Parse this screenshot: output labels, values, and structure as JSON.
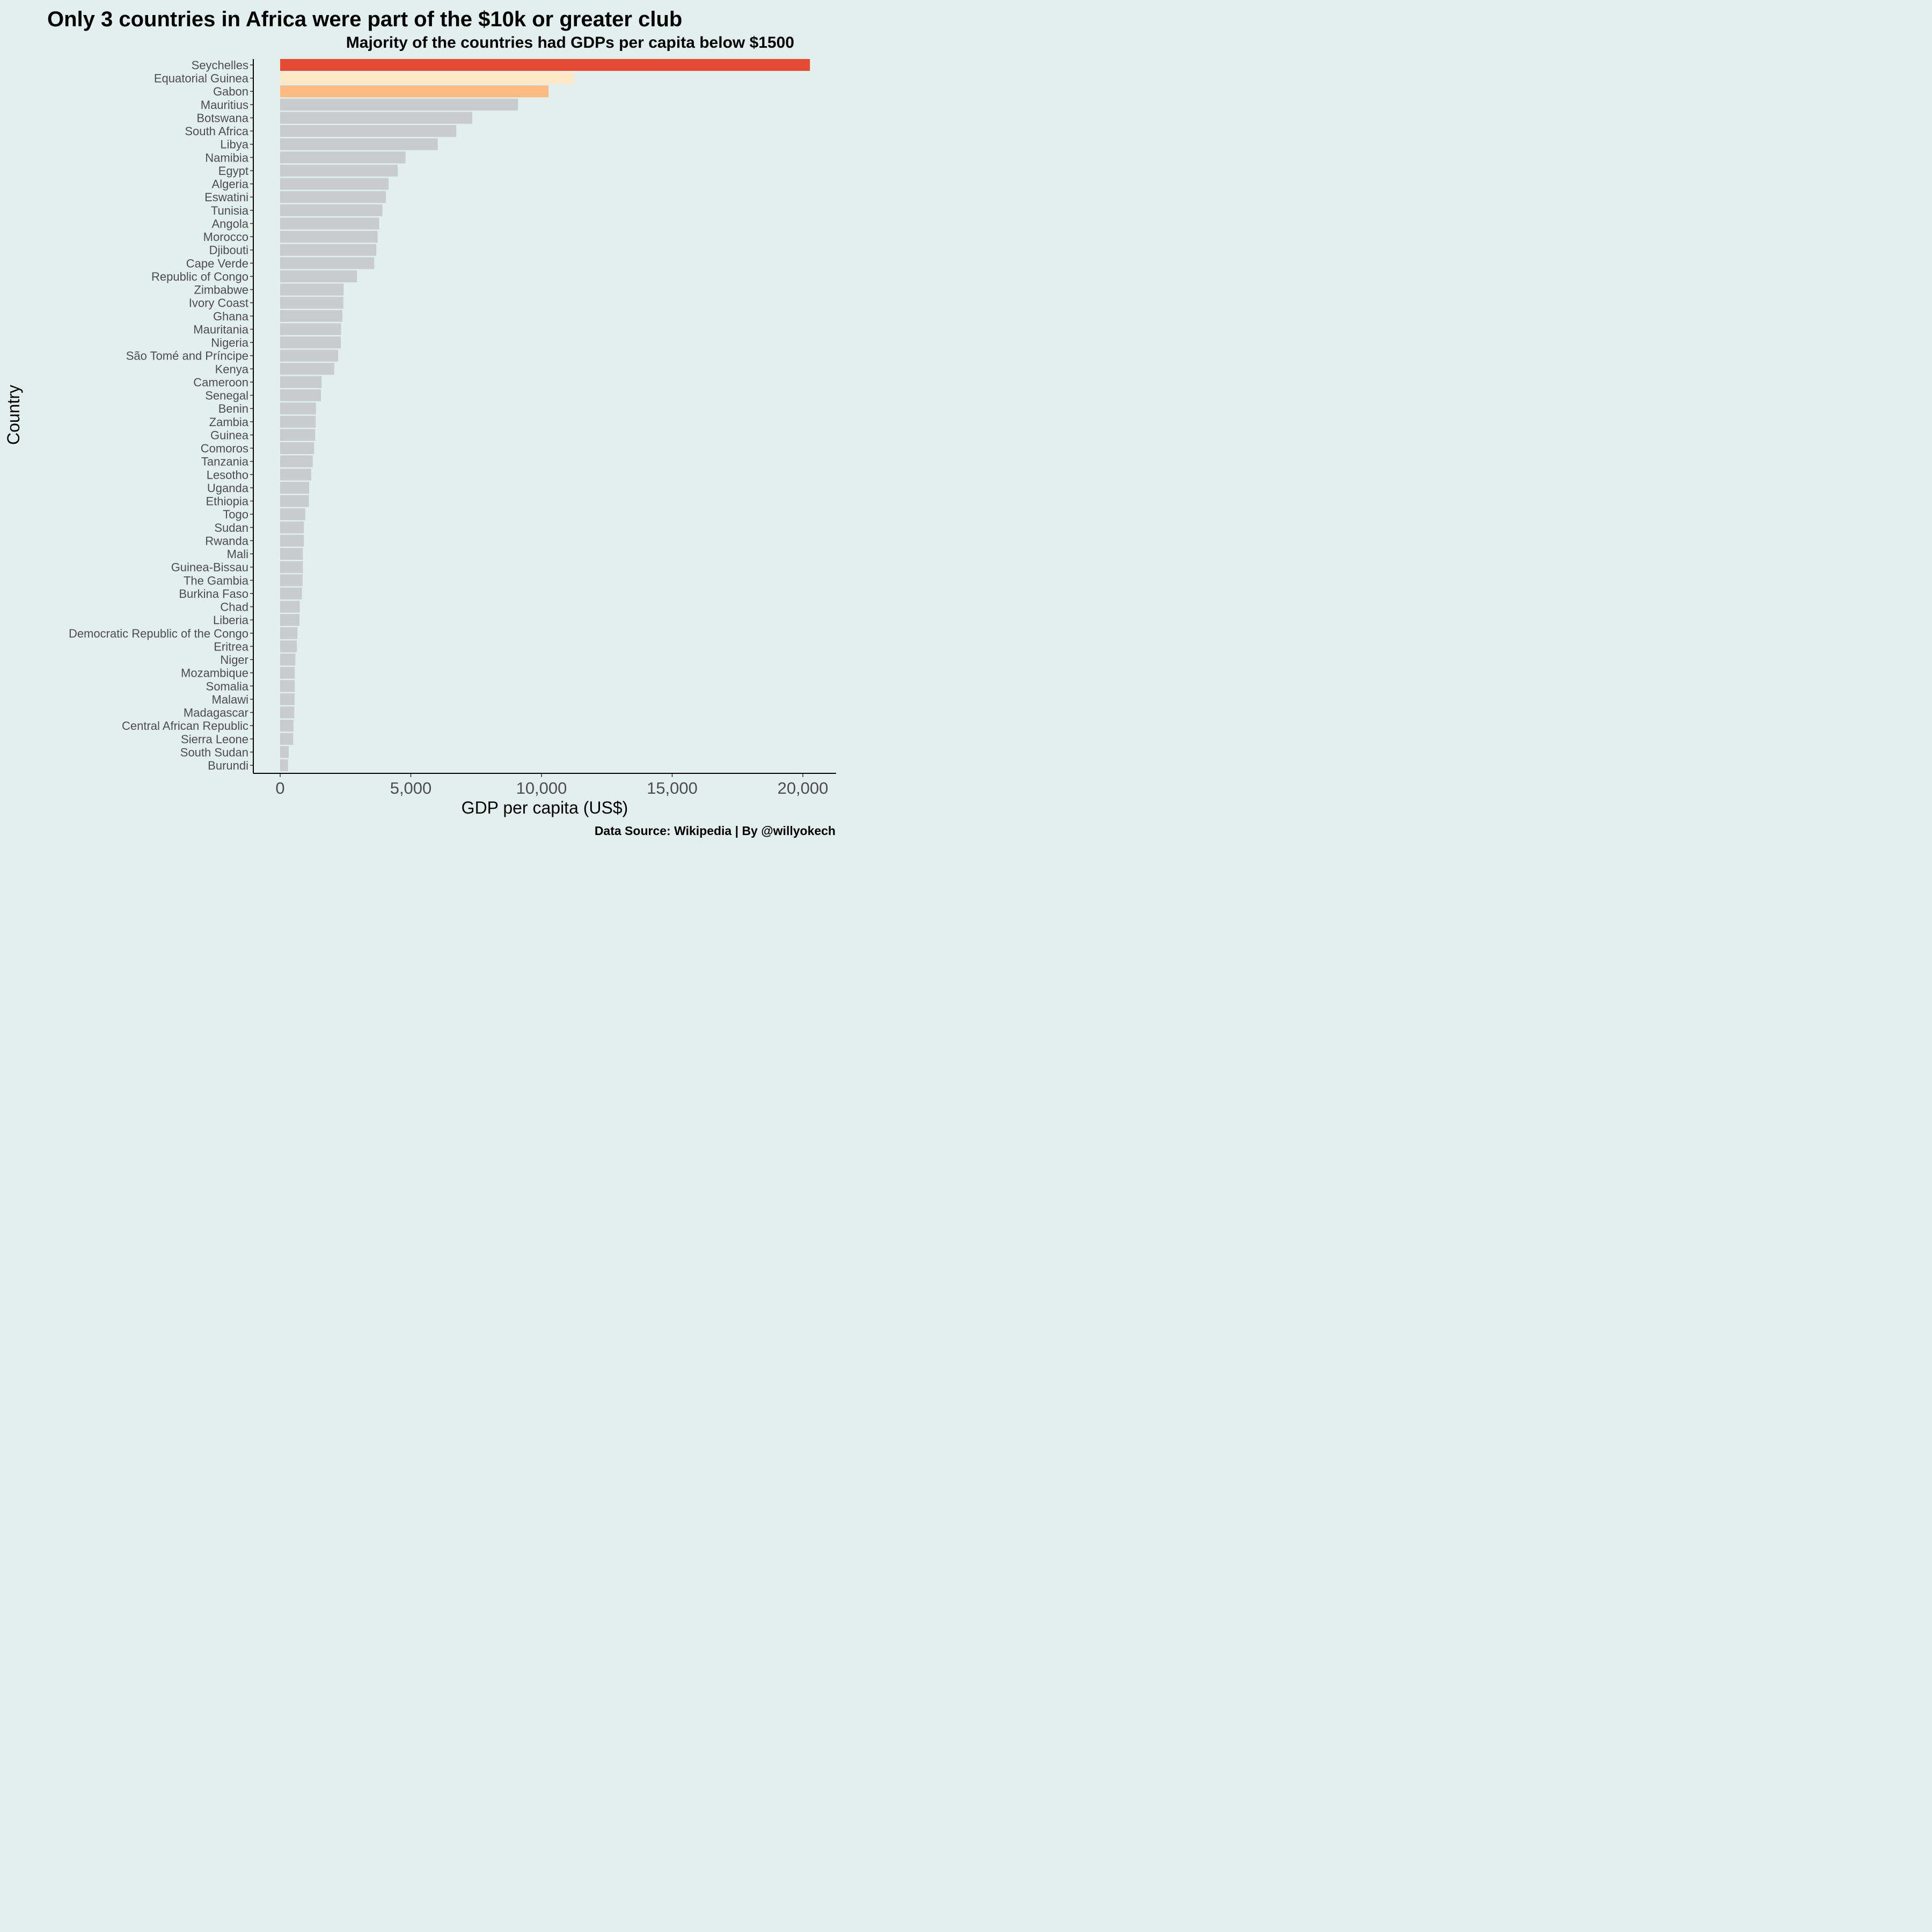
{
  "chart_data": {
    "type": "bar",
    "orientation": "horizontal",
    "title": "Only 3 countries in Africa were part of the $10k or greater club",
    "subtitle": "Majority of the countries had GDPs per capita below $1500",
    "xlabel": "GDP per capita (US$)",
    "ylabel": "Country",
    "caption": "Data Source: Wikipedia | By @willyokech",
    "xlim": [
      -1000,
      21000
    ],
    "xticks": [
      0,
      5000,
      10000,
      15000,
      20000
    ],
    "xtick_labels": [
      "0",
      "5,000",
      "10,000",
      "15,000",
      "20,000"
    ],
    "grid": false,
    "legend": "none",
    "background": "#e2efed",
    "colors": {
      "highlight_1": "#e34a33",
      "highlight_2": "#fee8c8",
      "highlight_3": "#fdbb84",
      "default": "#c9cccc"
    },
    "categories": [
      "Seychelles",
      "Equatorial Guinea",
      "Gabon",
      "Mauritius",
      "Botswana",
      "South Africa",
      "Libya",
      "Namibia",
      "Egypt",
      "Algeria",
      "Eswatini",
      "Tunisia",
      "Angola",
      "Morocco",
      "Djibouti",
      "Cape Verde",
      "Republic of Congo",
      "Zimbabwe",
      "Ivory Coast",
      "Ghana",
      "Mauritania",
      "Nigeria",
      "São Tomé and Príncipe",
      "Kenya",
      "Cameroon",
      "Senegal",
      "Benin",
      "Zambia",
      "Guinea",
      "Comoros",
      "Tanzania",
      "Lesotho",
      "Uganda",
      "Ethiopia",
      "Togo",
      "Sudan",
      "Rwanda",
      "Mali",
      "Guinea-Bissau",
      "The Gambia",
      "Burkina Faso",
      "Chad",
      "Liberia",
      "Democratic Republic of the Congo",
      "Eritrea",
      "Niger",
      "Mozambique",
      "Somalia",
      "Malawi",
      "Madagascar",
      "Central African Republic",
      "Sierra Leone",
      "South Sudan",
      "Burundi"
    ],
    "values": [
      20270,
      11240,
      10270,
      9100,
      7350,
      6740,
      6030,
      4800,
      4500,
      4150,
      4050,
      3910,
      3790,
      3730,
      3680,
      3600,
      2940,
      2430,
      2420,
      2380,
      2330,
      2320,
      2220,
      2070,
      1590,
      1560,
      1370,
      1360,
      1340,
      1300,
      1250,
      1190,
      1110,
      1100,
      960,
      910,
      910,
      870,
      870,
      860,
      830,
      750,
      740,
      660,
      640,
      580,
      560,
      560,
      550,
      540,
      510,
      500,
      330,
      300
    ],
    "bar_colors": [
      "#e34a33",
      "#fee8c8",
      "#fdbb84",
      "#c9cccc",
      "#c9cccc",
      "#c9cccc",
      "#c9cccc",
      "#c9cccc",
      "#c9cccc",
      "#c9cccc",
      "#c9cccc",
      "#c9cccc",
      "#c9cccc",
      "#c9cccc",
      "#c9cccc",
      "#c9cccc",
      "#c9cccc",
      "#c9cccc",
      "#c9cccc",
      "#c9cccc",
      "#c9cccc",
      "#c9cccc",
      "#c9cccc",
      "#c9cccc",
      "#c9cccc",
      "#c9cccc",
      "#c9cccc",
      "#c9cccc",
      "#c9cccc",
      "#c9cccc",
      "#c9cccc",
      "#c9cccc",
      "#c9cccc",
      "#c9cccc",
      "#c9cccc",
      "#c9cccc",
      "#c9cccc",
      "#c9cccc",
      "#c9cccc",
      "#c9cccc",
      "#c9cccc",
      "#c9cccc",
      "#c9cccc",
      "#c9cccc",
      "#c9cccc",
      "#c9cccc",
      "#c9cccc",
      "#c9cccc",
      "#c9cccc",
      "#c9cccc",
      "#c9cccc",
      "#c9cccc",
      "#c9cccc",
      "#c9cccc"
    ]
  }
}
